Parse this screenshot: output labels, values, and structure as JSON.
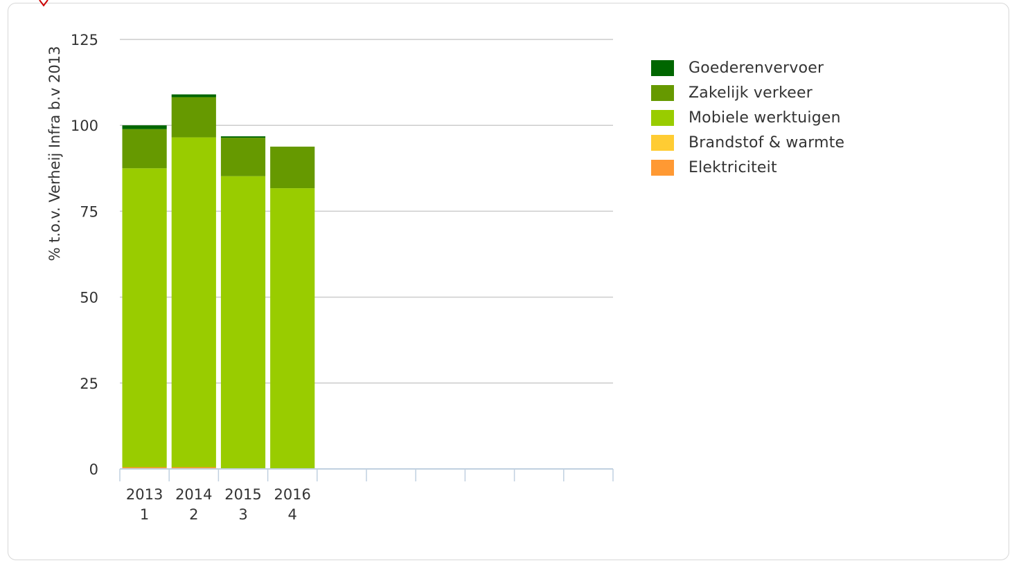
{
  "chart_data": {
    "type": "bar",
    "stacked": true,
    "ylabel": "% t.o.v. Verheij Infra b.v 2013",
    "ylim": [
      0,
      125
    ],
    "yticks": [
      "0",
      "25",
      "50",
      "75",
      "100",
      "125"
    ],
    "grid": true,
    "legend_position": "right",
    "slots": 10,
    "categories": [
      {
        "year": "2013",
        "index": "1"
      },
      {
        "year": "2014",
        "index": "2"
      },
      {
        "year": "2015",
        "index": "3"
      },
      {
        "year": "2016",
        "index": "4"
      }
    ],
    "series": [
      {
        "name": "Elektriciteit",
        "color": "#ff9933",
        "values": [
          0.5,
          0.5,
          0.2,
          0.2
        ]
      },
      {
        "name": "Brandstof & warmte",
        "color": "#ffcc33",
        "values": [
          0,
          0,
          0,
          0
        ]
      },
      {
        "name": "Mobiele werktuigen",
        "color": "#99cc00",
        "values": [
          87,
          96,
          85,
          81.5
        ]
      },
      {
        "name": "Zakelijk verkeer",
        "color": "#669900",
        "values": [
          11.4,
          11.7,
          11.2,
          12.1
        ]
      },
      {
        "name": "Goederenvervoer",
        "color": "#006600",
        "values": [
          1.1,
          0.8,
          0.4,
          0
        ]
      }
    ],
    "legend_order": [
      "Goederenvervoer",
      "Zakelijk verkeer",
      "Mobiele werktuigen",
      "Brandstof & warmte",
      "Elektriciteit"
    ]
  }
}
